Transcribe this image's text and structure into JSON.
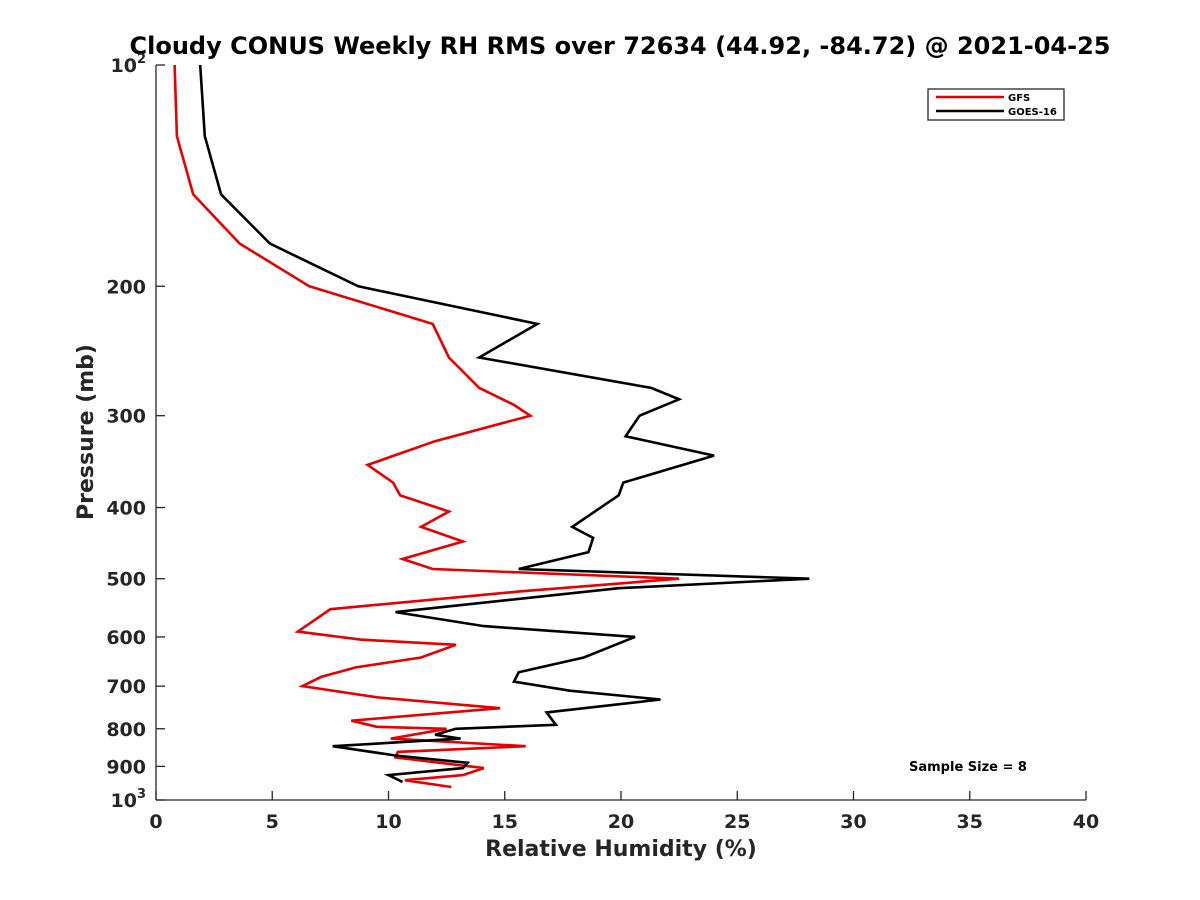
{
  "chart_data": {
    "type": "line",
    "title": "Cloudy CONUS Weekly RH RMS over 72634 (44.92, -84.72) @ 2021-04-25",
    "xlabel": "Relative Humidity (%)",
    "ylabel": "Pressure (mb)",
    "xlim": [
      0,
      40
    ],
    "ylim": [
      100,
      1000
    ],
    "y_scale": "log",
    "y_reversed": true,
    "grid": false,
    "legend_position": "top-right",
    "x_ticks": [
      "0",
      "5",
      "10",
      "15",
      "20",
      "25",
      "30",
      "35",
      "40"
    ],
    "y_ticks": [
      {
        "value": 100,
        "base": "10",
        "exp": "2"
      },
      {
        "value": 200,
        "label": "200"
      },
      {
        "value": 300,
        "label": "300"
      },
      {
        "value": 400,
        "label": "400"
      },
      {
        "value": 500,
        "label": "500"
      },
      {
        "value": 600,
        "label": "600"
      },
      {
        "value": 700,
        "label": "700"
      },
      {
        "value": 800,
        "label": "800"
      },
      {
        "value": 900,
        "label": "900"
      },
      {
        "value": 1000,
        "base": "10",
        "exp": "3"
      }
    ],
    "annotation": "Sample Size = 8",
    "series": [
      {
        "name": "GFS",
        "color": "#e60000",
        "points": [
          [
            0.8,
            100
          ],
          [
            0.9,
            125
          ],
          [
            1.6,
            150
          ],
          [
            3.6,
            175
          ],
          [
            6.6,
            200
          ],
          [
            11.9,
            225
          ],
          [
            12.6,
            250
          ],
          [
            13.9,
            275
          ],
          [
            15.4,
            290
          ],
          [
            16.1,
            300
          ],
          [
            12.0,
            325
          ],
          [
            9.1,
            350
          ],
          [
            10.2,
            370
          ],
          [
            10.5,
            385
          ],
          [
            12.6,
            405
          ],
          [
            11.4,
            425
          ],
          [
            13.2,
            445
          ],
          [
            10.6,
            470
          ],
          [
            11.9,
            485
          ],
          [
            22.5,
            500
          ],
          [
            15.7,
            520
          ],
          [
            7.5,
            550
          ],
          [
            6.1,
            590
          ],
          [
            8.8,
            605
          ],
          [
            12.9,
            615
          ],
          [
            11.4,
            640
          ],
          [
            8.6,
            660
          ],
          [
            7.1,
            680
          ],
          [
            6.3,
            700
          ],
          [
            9.5,
            725
          ],
          [
            14.8,
            750
          ],
          [
            8.4,
            780
          ],
          [
            9.5,
            795
          ],
          [
            12.5,
            800
          ],
          [
            10.1,
            825
          ],
          [
            15.9,
            845
          ],
          [
            10.4,
            860
          ],
          [
            10.3,
            875
          ],
          [
            14.1,
            905
          ],
          [
            13.2,
            925
          ],
          [
            10.7,
            940
          ],
          [
            12.7,
            960
          ]
        ]
      },
      {
        "name": "GOES-16",
        "color": "#000000",
        "points": [
          [
            1.9,
            100
          ],
          [
            2.1,
            125
          ],
          [
            2.8,
            150
          ],
          [
            4.9,
            175
          ],
          [
            8.7,
            200
          ],
          [
            16.4,
            225
          ],
          [
            13.9,
            250
          ],
          [
            21.3,
            275
          ],
          [
            22.5,
            285
          ],
          [
            20.8,
            300
          ],
          [
            20.2,
            320
          ],
          [
            24.0,
            340
          ],
          [
            20.1,
            370
          ],
          [
            19.9,
            385
          ],
          [
            17.9,
            425
          ],
          [
            18.8,
            440
          ],
          [
            18.6,
            460
          ],
          [
            15.6,
            485
          ],
          [
            28.1,
            500
          ],
          [
            19.9,
            515
          ],
          [
            10.3,
            555
          ],
          [
            14.1,
            580
          ],
          [
            20.6,
            600
          ],
          [
            18.4,
            640
          ],
          [
            15.6,
            670
          ],
          [
            15.4,
            690
          ],
          [
            17.8,
            710
          ],
          [
            21.7,
            730
          ],
          [
            16.8,
            760
          ],
          [
            17.2,
            790
          ],
          [
            12.9,
            800
          ],
          [
            12.0,
            815
          ],
          [
            13.1,
            825
          ],
          [
            7.6,
            845
          ],
          [
            10.3,
            870
          ],
          [
            13.4,
            890
          ],
          [
            13.2,
            905
          ],
          [
            10.0,
            925
          ],
          [
            10.6,
            945
          ]
        ]
      }
    ]
  }
}
